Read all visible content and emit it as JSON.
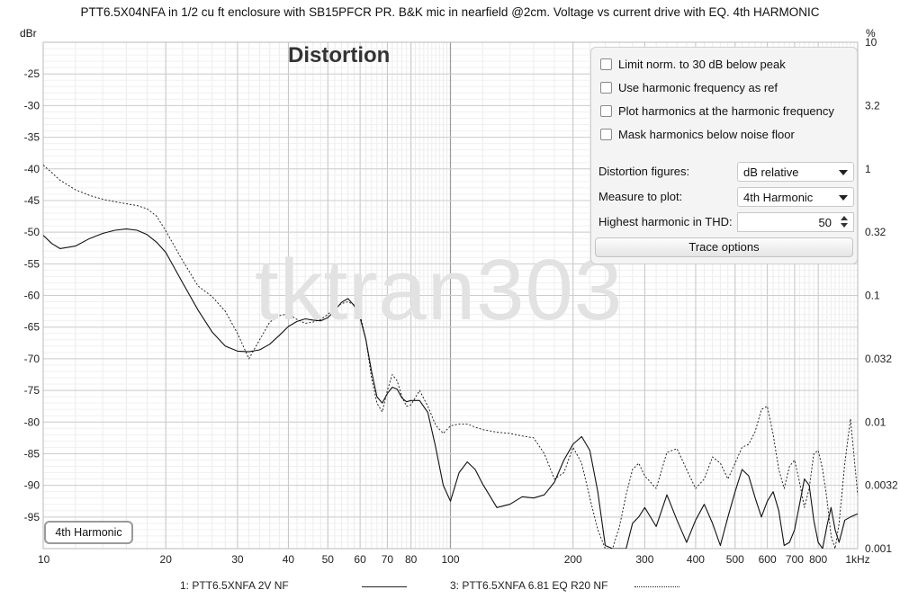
{
  "window": {
    "title": "PTT6.5X04NFA in 1/2 cu ft enclosure with SB15PFCR PR. B&K mic in nearfield @2cm. Voltage vs current drive with EQ. 4th HARMONIC",
    "watermark": "tktran303",
    "plot_title": "Distortion",
    "left_unit": "dBr",
    "right_unit": "%",
    "measure_badge": "4th Harmonic"
  },
  "panel": {
    "checkboxes": [
      {
        "label": "Limit norm. to 30 dB below peak",
        "checked": false
      },
      {
        "label": "Use harmonic frequency as ref",
        "checked": false
      },
      {
        "label": "Plot harmonics at the harmonic frequency",
        "checked": false
      },
      {
        "label": "Mask harmonics below noise floor",
        "checked": false
      }
    ],
    "distortion_figures_label": "Distortion figures:",
    "distortion_figures_value": "dB relative",
    "measure_label": "Measure to plot:",
    "measure_value": "4th Harmonic",
    "highest_label": "Highest harmonic in THD:",
    "highest_value": "50",
    "trace_options_label": "Trace options"
  },
  "legend": {
    "items": [
      {
        "label": "1: PTT6.5XNFA 2V NF",
        "style": "solid"
      },
      {
        "label": "3: PTT6.5XNFA 6.81 EQ R20 NF",
        "style": "dotted"
      }
    ]
  },
  "chart_data": {
    "type": "line",
    "title": "Distortion",
    "ylabel": "dBr",
    "y2label": "%",
    "xscale": "log",
    "xlim": [
      10,
      1000
    ],
    "ylim": [
      -100,
      -20
    ],
    "grid": true,
    "legend_position": "bottom",
    "x_ticks": [
      "10",
      "20",
      "30",
      "40",
      "50",
      "60",
      "70",
      "80",
      "100",
      "200",
      "300",
      "400",
      "500",
      "600",
      "700",
      "800",
      "1kHz"
    ],
    "x_tick_values": [
      10,
      20,
      30,
      40,
      50,
      60,
      70,
      80,
      100,
      200,
      300,
      400,
      500,
      600,
      700,
      800,
      1000
    ],
    "y_ticks": [
      -25,
      -30,
      -35,
      -40,
      -45,
      -50,
      -55,
      -60,
      -65,
      -70,
      -75,
      -80,
      -85,
      -90,
      -95
    ],
    "y2_ticks": [
      {
        "label": "10",
        "db": -20
      },
      {
        "label": "3.2",
        "db": -30
      },
      {
        "label": "1",
        "db": -40
      },
      {
        "label": "0.32",
        "db": -50
      },
      {
        "label": "0.1",
        "db": -60
      },
      {
        "label": "0.032",
        "db": -70
      },
      {
        "label": "0.01",
        "db": -80
      },
      {
        "label": "0.0032",
        "db": -90
      },
      {
        "label": "0.001",
        "db": -100
      }
    ],
    "series": [
      {
        "name": "1: PTT6.5XNFA 2V NF",
        "style": "solid",
        "x": [
          10,
          10.5,
          11,
          12,
          13,
          14,
          15,
          16,
          17,
          18,
          19,
          20,
          22,
          24,
          26,
          28,
          30,
          32,
          34,
          36,
          38,
          40,
          42,
          44,
          46,
          48,
          50,
          52,
          54,
          56,
          58,
          60,
          62,
          64,
          66,
          68,
          70,
          72,
          74,
          76,
          78,
          80,
          84,
          88,
          92,
          96,
          100,
          105,
          110,
          115,
          120,
          130,
          140,
          150,
          160,
          170,
          180,
          190,
          200,
          210,
          220,
          230,
          240,
          250,
          260,
          270,
          280,
          290,
          300,
          320,
          340,
          360,
          380,
          400,
          420,
          440,
          460,
          480,
          500,
          520,
          540,
          560,
          580,
          600,
          620,
          640,
          660,
          680,
          700,
          720,
          740,
          760,
          780,
          800,
          820,
          840,
          860,
          880,
          900,
          930,
          960,
          1000
        ],
        "y": [
          -50.5,
          -51.8,
          -52.6,
          -52.2,
          -51.0,
          -50.2,
          -49.7,
          -49.5,
          -49.7,
          -50.4,
          -51.6,
          -53.2,
          -58.0,
          -62.3,
          -65.8,
          -68.0,
          -68.8,
          -68.9,
          -68.6,
          -67.7,
          -66.3,
          -64.9,
          -64.1,
          -63.7,
          -63.9,
          -64.0,
          -63.5,
          -62.4,
          -61.1,
          -60.5,
          -61.6,
          -63.5,
          -67.0,
          -72.0,
          -76.0,
          -77.0,
          -75.5,
          -74.5,
          -74.8,
          -76.2,
          -76.8,
          -76.6,
          -76.6,
          -78.5,
          -84.0,
          -90.0,
          -92.5,
          -88.0,
          -86.3,
          -87.5,
          -89.8,
          -93.5,
          -93.0,
          -91.8,
          -92.0,
          -91.5,
          -89.5,
          -86.0,
          -83.5,
          -82.3,
          -84.5,
          -91.0,
          -99.5,
          -100,
          -100,
          -100,
          -96.0,
          -95.0,
          -93.5,
          -96.5,
          -91.5,
          -95.5,
          -99.0,
          -95.5,
          -93.0,
          -96.0,
          -99.5,
          -95.0,
          -91.0,
          -87.5,
          -88.5,
          -92.0,
          -95.0,
          -92.5,
          -91.0,
          -94.0,
          -99.5,
          -99.0,
          -97.0,
          -93.0,
          -89.0,
          -90.0,
          -95.5,
          -99.0,
          -100,
          -96.5,
          -93.5,
          -97.0,
          -99.0,
          -95.5,
          -95.0,
          -94.5
        ]
      },
      {
        "name": "3: PTT6.5XNFA 6.81 EQ R20 NF",
        "style": "dotted",
        "x": [
          10,
          10.5,
          11,
          12,
          13,
          14,
          15,
          16,
          17,
          18,
          19,
          20,
          22,
          24,
          26,
          28,
          30,
          32,
          34,
          36,
          38,
          40,
          42,
          44,
          46,
          48,
          50,
          52,
          54,
          56,
          58,
          60,
          62,
          64,
          66,
          68,
          70,
          72,
          74,
          76,
          78,
          80,
          84,
          88,
          92,
          96,
          100,
          105,
          110,
          115,
          120,
          130,
          140,
          150,
          160,
          170,
          180,
          190,
          200,
          210,
          220,
          230,
          240,
          250,
          260,
          270,
          280,
          290,
          300,
          320,
          340,
          360,
          380,
          400,
          420,
          440,
          460,
          480,
          500,
          520,
          540,
          560,
          580,
          600,
          620,
          640,
          660,
          680,
          700,
          720,
          740,
          760,
          780,
          800,
          820,
          840,
          860,
          880,
          900,
          930,
          960,
          1000
        ],
        "y": [
          -39.4,
          -40.6,
          -41.8,
          -43.3,
          -44.2,
          -44.8,
          -45.2,
          -45.5,
          -45.8,
          -46.3,
          -47.5,
          -49.8,
          -54.5,
          -58.5,
          -60.2,
          -62.5,
          -66.0,
          -70.0,
          -67.0,
          -64.2,
          -63.2,
          -62.9,
          -63.8,
          -64.4,
          -64.2,
          -63.8,
          -63.0,
          -61.9,
          -61.3,
          -61.0,
          -61.5,
          -63.0,
          -67.0,
          -73.0,
          -77.0,
          -78.4,
          -75.0,
          -72.5,
          -73.5,
          -76.0,
          -77.5,
          -77.3,
          -75.0,
          -77.5,
          -80.5,
          -81.8,
          -80.6,
          -80.3,
          -80.3,
          -80.8,
          -81.2,
          -81.6,
          -81.8,
          -82.2,
          -82.5,
          -85.0,
          -89.0,
          -88.0,
          -84.0,
          -86.5,
          -92.0,
          -97.0,
          -100,
          -100,
          -96.5,
          -91.5,
          -87.5,
          -86.5,
          -88.5,
          -90.5,
          -84.8,
          -84.2,
          -87.5,
          -90.5,
          -89.0,
          -85.5,
          -86.5,
          -89.0,
          -86.5,
          -84.0,
          -83.5,
          -81.5,
          -78.0,
          -77.5,
          -82.0,
          -87.5,
          -90.5,
          -87.0,
          -86.0,
          -89.5,
          -93.5,
          -90.5,
          -85.0,
          -84.5,
          -87.5,
          -92.0,
          -98.0,
          -100,
          -96.0,
          -86.5,
          -79.5,
          -91.5
        ]
      }
    ]
  }
}
